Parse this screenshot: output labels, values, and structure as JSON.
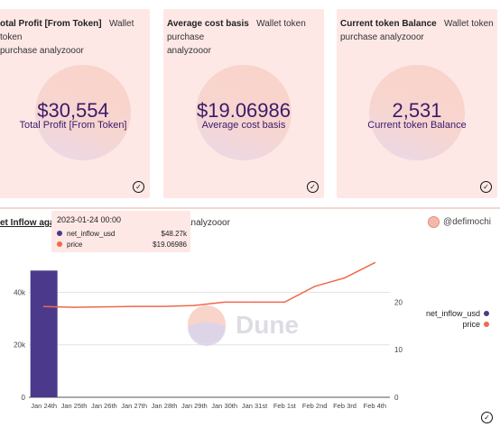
{
  "cards": [
    {
      "title": "otal Profit [From Token]",
      "subtitle_line1": "Wallet token",
      "subtitle_line2": "purchase analyzooor",
      "value": "$30,554",
      "label": "Total Profit [From Token]"
    },
    {
      "title": "Average cost basis",
      "subtitle_line1": "Wallet token purchase",
      "subtitle_line2": "analyzooor",
      "value": "$19.06986",
      "label": "Average cost basis"
    },
    {
      "title": "Current token Balance",
      "subtitle_line1": "Wallet token",
      "subtitle_line2": "purchase analyzooor",
      "value": "2,531",
      "label": "Current token Balance"
    }
  ],
  "chart_panel": {
    "title": "et Inflow agai",
    "subtitle": "analyzooor",
    "author": "@defimochi",
    "watermark": "Dune",
    "tooltip": {
      "date": "2023-01-24 00:00",
      "rows": [
        {
          "name": "net_inflow_usd",
          "value": "$48.27k",
          "color": "#4b3a8c"
        },
        {
          "name": "price",
          "value": "$19.06986",
          "color": "#f0694a"
        }
      ]
    }
  },
  "chart_data": {
    "type": "bar",
    "categories": [
      "Jan 24th",
      "Jan 25th",
      "Jan 26th",
      "Jan 27th",
      "Jan 28th",
      "Jan 29th",
      "Jan 30th",
      "Jan 31st",
      "Feb 1st",
      "Feb 2nd",
      "Feb 3rd",
      "Feb 4th"
    ],
    "series": [
      {
        "name": "net_inflow_usd",
        "type": "bar",
        "axis": "left",
        "color": "#4b3a8c",
        "values": [
          48270,
          0,
          0,
          0,
          0,
          0,
          0,
          0,
          0,
          0,
          0,
          0
        ]
      },
      {
        "name": "price",
        "type": "line",
        "axis": "right",
        "color": "#f0694a",
        "values": [
          19.07,
          18.9,
          19.0,
          19.1,
          19.1,
          19.3,
          20.0,
          20.0,
          20.0,
          23.3,
          25.1,
          28.3
        ]
      }
    ],
    "y_left": {
      "ticks": [
        "0",
        "20k",
        "40k"
      ],
      "range": [
        0,
        58000
      ]
    },
    "y_right": {
      "ticks": [
        "0",
        "10",
        "20"
      ],
      "range": [
        0,
        32
      ]
    },
    "legend_position": "right",
    "grid": true
  }
}
